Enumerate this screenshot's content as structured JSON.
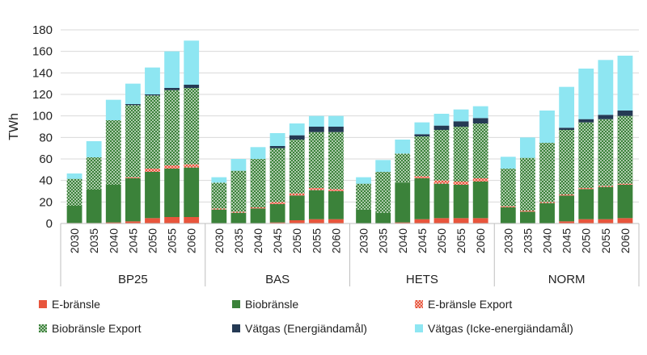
{
  "chart_data": {
    "type": "bar",
    "stacked": true,
    "ylabel": "TWh",
    "ylim": [
      0,
      180
    ],
    "yticks": [
      0,
      20,
      40,
      60,
      80,
      100,
      120,
      140,
      160,
      180
    ],
    "grid": true,
    "legend_position": "bottom",
    "years": [
      "2030",
      "2035",
      "2040",
      "2045",
      "2050",
      "2055",
      "2060"
    ],
    "groups": [
      {
        "name": "BP25",
        "series_values": {
          "E-bränsle": [
            0.5,
            0.5,
            1,
            2,
            5,
            6,
            6
          ],
          "Biobränsle": [
            16,
            31,
            35,
            40,
            43,
            45,
            46
          ],
          "E-bränsle Export": [
            0,
            0,
            0,
            1,
            3,
            3,
            3
          ],
          "Biobränsle Export": [
            25,
            30,
            60,
            67,
            68,
            70,
            71
          ],
          "Vätgas (Energiändamål)": [
            0,
            0,
            0,
            1,
            1,
            2,
            3
          ],
          "Vätgas (Icke-energiändamål)": [
            5,
            15,
            19,
            19,
            25,
            34,
            41
          ]
        }
      },
      {
        "name": "BAS",
        "series_values": {
          "E-bränsle": [
            0,
            0,
            0,
            1,
            3,
            4,
            4
          ],
          "Biobränsle": [
            13,
            10,
            14,
            17,
            23,
            27,
            26
          ],
          "E-bränsle Export": [
            1,
            1,
            1,
            2,
            2,
            2,
            2
          ],
          "Biobränsle Export": [
            24,
            38,
            45,
            50,
            50,
            52,
            53
          ],
          "Vätgas (Energiändamål)": [
            0,
            0,
            0,
            2,
            4,
            5,
            5
          ],
          "Vätgas (Icke-energiändamål)": [
            5,
            11,
            11,
            12,
            11,
            10,
            10
          ]
        }
      },
      {
        "name": "HETS",
        "series_values": {
          "E-bränsle": [
            0,
            0,
            1,
            4,
            5,
            5,
            5
          ],
          "Biobränsle": [
            13,
            10,
            37,
            38,
            32,
            31,
            34
          ],
          "E-bränsle Export": [
            0,
            0,
            0,
            2,
            3,
            3,
            3
          ],
          "Biobränsle Export": [
            24,
            38,
            27,
            37,
            47,
            51,
            51
          ],
          "Vätgas (Energiändamål)": [
            0,
            0,
            0,
            2,
            4,
            5,
            5
          ],
          "Vätgas (Icke-energiändamål)": [
            6,
            11,
            13,
            11,
            11,
            11,
            11
          ]
        }
      },
      {
        "name": "NORM",
        "series_values": {
          "E-bränsle": [
            0,
            0,
            0,
            2,
            4,
            4,
            5
          ],
          "Biobränsle": [
            15,
            11,
            19,
            24,
            28,
            30,
            31
          ],
          "E-bränsle Export": [
            1,
            1,
            1,
            1,
            1,
            1,
            1
          ],
          "Biobränsle Export": [
            35,
            49,
            55,
            60,
            61,
            62,
            63
          ],
          "Vätgas (Energiändamål)": [
            0,
            0,
            0,
            2,
            3,
            4,
            5
          ],
          "Vätgas (Icke-energiändamål)": [
            11,
            19,
            30,
            38,
            47,
            51,
            51
          ]
        }
      }
    ],
    "series": [
      {
        "name": "E-bränsle",
        "color": "#e8553c",
        "pattern": "solid"
      },
      {
        "name": "Biobränsle",
        "color": "#3b823a",
        "pattern": "solid"
      },
      {
        "name": "E-bränsle Export",
        "color": "#e8553c",
        "pattern": "dots"
      },
      {
        "name": "Biobränsle Export",
        "color": "#3b823a",
        "pattern": "dots"
      },
      {
        "name": "Vätgas (Energiändamål)",
        "color": "#253a54",
        "pattern": "solid"
      },
      {
        "name": "Vätgas (Icke-energiändamål)",
        "color": "#8ee6f2",
        "pattern": "solid"
      }
    ]
  }
}
